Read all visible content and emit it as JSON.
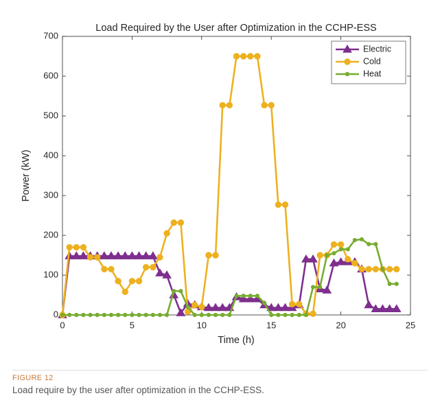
{
  "chart_data": {
    "type": "line",
    "title": "Load Required by the User after Optimization in the CCHP-ESS",
    "xlabel": "Time (h)",
    "ylabel": "Power (kW)",
    "x": [
      0,
      0.5,
      1,
      1.5,
      2,
      2.5,
      3,
      3.5,
      4,
      4.5,
      5,
      5.5,
      6,
      6.5,
      7,
      7.5,
      8,
      8.5,
      9,
      9.5,
      10,
      10.5,
      11,
      11.5,
      12,
      12.5,
      13,
      13.5,
      14,
      14.5,
      15,
      15.5,
      16,
      16.5,
      17,
      17.5,
      18,
      18.5,
      19,
      19.5,
      20,
      20.5,
      21,
      21.5,
      22,
      22.5,
      23,
      23.5,
      24
    ],
    "series": [
      {
        "name": "Electric",
        "color": "#7e2f8e",
        "marker": "triangle",
        "values": [
          0,
          148,
          148,
          148,
          148,
          148,
          148,
          148,
          148,
          148,
          148,
          148,
          148,
          148,
          105,
          100,
          50,
          5,
          28,
          25,
          20,
          18,
          18,
          18,
          18,
          45,
          40,
          40,
          40,
          25,
          18,
          18,
          18,
          18,
          25,
          140,
          140,
          65,
          62,
          130,
          133,
          133,
          133,
          115,
          25,
          15,
          15,
          15,
          15
        ]
      },
      {
        "name": "Cold",
        "color": "#edb120",
        "marker": "circle",
        "values": [
          0,
          170,
          170,
          170,
          145,
          145,
          115,
          115,
          85,
          58,
          85,
          85,
          120,
          120,
          145,
          205,
          232,
          232,
          8,
          25,
          20,
          150,
          150,
          527,
          527,
          650,
          650,
          650,
          650,
          527,
          527,
          277,
          277,
          27,
          27,
          3,
          3,
          150,
          150,
          177,
          177,
          140,
          130,
          115,
          115,
          115,
          115,
          115,
          115
        ]
      },
      {
        "name": "Heat",
        "color": "#77ac30",
        "marker": "dot",
        "values": [
          0,
          0,
          0,
          0,
          0,
          0,
          0,
          0,
          0,
          0,
          0,
          0,
          0,
          0,
          0,
          0,
          60,
          60,
          20,
          0,
          0,
          0,
          0,
          0,
          0,
          48,
          48,
          48,
          48,
          30,
          0,
          0,
          0,
          0,
          0,
          0,
          70,
          70,
          150,
          155,
          165,
          165,
          188,
          190,
          178,
          178,
          115,
          78,
          78
        ]
      }
    ],
    "xlim": [
      0,
      25
    ],
    "xticks": [
      0,
      5,
      10,
      15,
      20,
      25
    ],
    "ylim": [
      0,
      700
    ],
    "yticks": [
      0,
      100,
      200,
      300,
      400,
      500,
      600,
      700
    ],
    "legend": "upper-right",
    "grid": false
  },
  "caption": {
    "label": "FIGURE 12",
    "text": "Load require by the user after optimization in the CCHP-ESS."
  }
}
